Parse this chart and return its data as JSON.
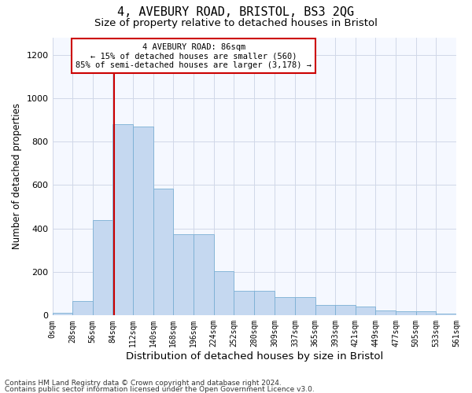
{
  "title": "4, AVEBURY ROAD, BRISTOL, BS3 2QG",
  "subtitle": "Size of property relative to detached houses in Bristol",
  "xlabel": "Distribution of detached houses by size in Bristol",
  "ylabel": "Number of detached properties",
  "bar_color": "#c5d8f0",
  "bar_edge_color": "#7aafd4",
  "vline_color": "#cc0000",
  "vline_x": 86,
  "annotation_title": "4 AVEBURY ROAD: 86sqm",
  "annotation_line2": "← 15% of detached houses are smaller (560)",
  "annotation_line3": "85% of semi-detached houses are larger (3,178) →",
  "bin_edges": [
    0,
    28,
    56,
    84,
    112,
    140,
    168,
    196,
    224,
    252,
    280,
    309,
    337,
    365,
    393,
    421,
    449,
    477,
    505,
    533,
    561
  ],
  "bar_heights": [
    12,
    65,
    440,
    880,
    870,
    585,
    375,
    375,
    205,
    115,
    115,
    85,
    85,
    50,
    50,
    40,
    22,
    18,
    18,
    10
  ],
  "ylim": [
    0,
    1280
  ],
  "yticks": [
    0,
    200,
    400,
    600,
    800,
    1000,
    1200
  ],
  "footnote1": "Contains HM Land Registry data © Crown copyright and database right 2024.",
  "footnote2": "Contains public sector information licensed under the Open Government Licence v3.0.",
  "bg_color": "#ffffff",
  "plot_bg_color": "#f5f8ff",
  "title_fontsize": 11,
  "subtitle_fontsize": 9.5,
  "axis_label_fontsize": 8.5,
  "tick_fontsize": 7,
  "footnote_fontsize": 6.5
}
